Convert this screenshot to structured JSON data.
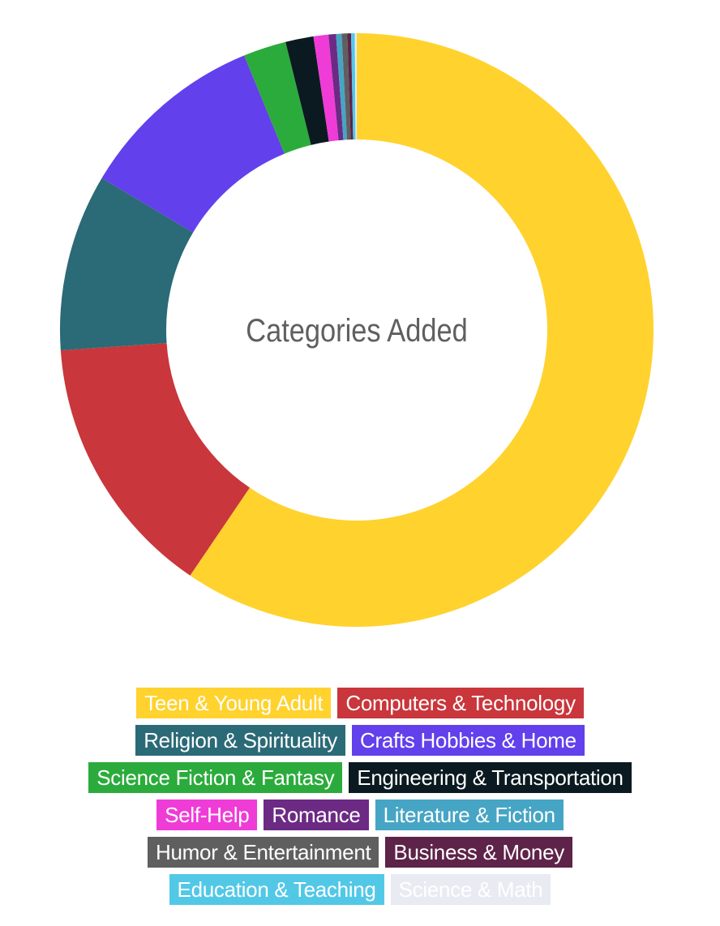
{
  "chart_data": {
    "type": "pie",
    "title": "Categories Added",
    "series": [
      {
        "name": "Teen & Young Adult",
        "value": 58.6,
        "color": "#ffd22e"
      },
      {
        "name": "Computers & Technology",
        "value": 14.2,
        "color": "#c9363b"
      },
      {
        "name": "Religion & Spirituality",
        "value": 9.5,
        "color": "#2b6a77"
      },
      {
        "name": "Crafts Hobbies & Home",
        "value": 10.1,
        "color": "#6240ec"
      },
      {
        "name": "Science Fiction & Fantasy",
        "value": 2.3,
        "color": "#2bab3c"
      },
      {
        "name": "Engineering & Transportation",
        "value": 1.5,
        "color": "#0b1a21"
      },
      {
        "name": "Self-Help",
        "value": 0.8,
        "color": "#ef3cd6"
      },
      {
        "name": "Romance",
        "value": 0.4,
        "color": "#6c2a84"
      },
      {
        "name": "Literature & Fiction",
        "value": 0.3,
        "color": "#46a5c4"
      },
      {
        "name": "Humor & Entertainment",
        "value": 0.3,
        "color": "#5f5f5f"
      },
      {
        "name": "Business & Money",
        "value": 0.2,
        "color": "#5e2348"
      },
      {
        "name": "Education & Teaching",
        "value": 0.2,
        "color": "#52c8e7"
      },
      {
        "name": "Science & Math",
        "value": 0.1,
        "color": "#e9ebf3"
      }
    ],
    "legend_placement": "bottom"
  }
}
